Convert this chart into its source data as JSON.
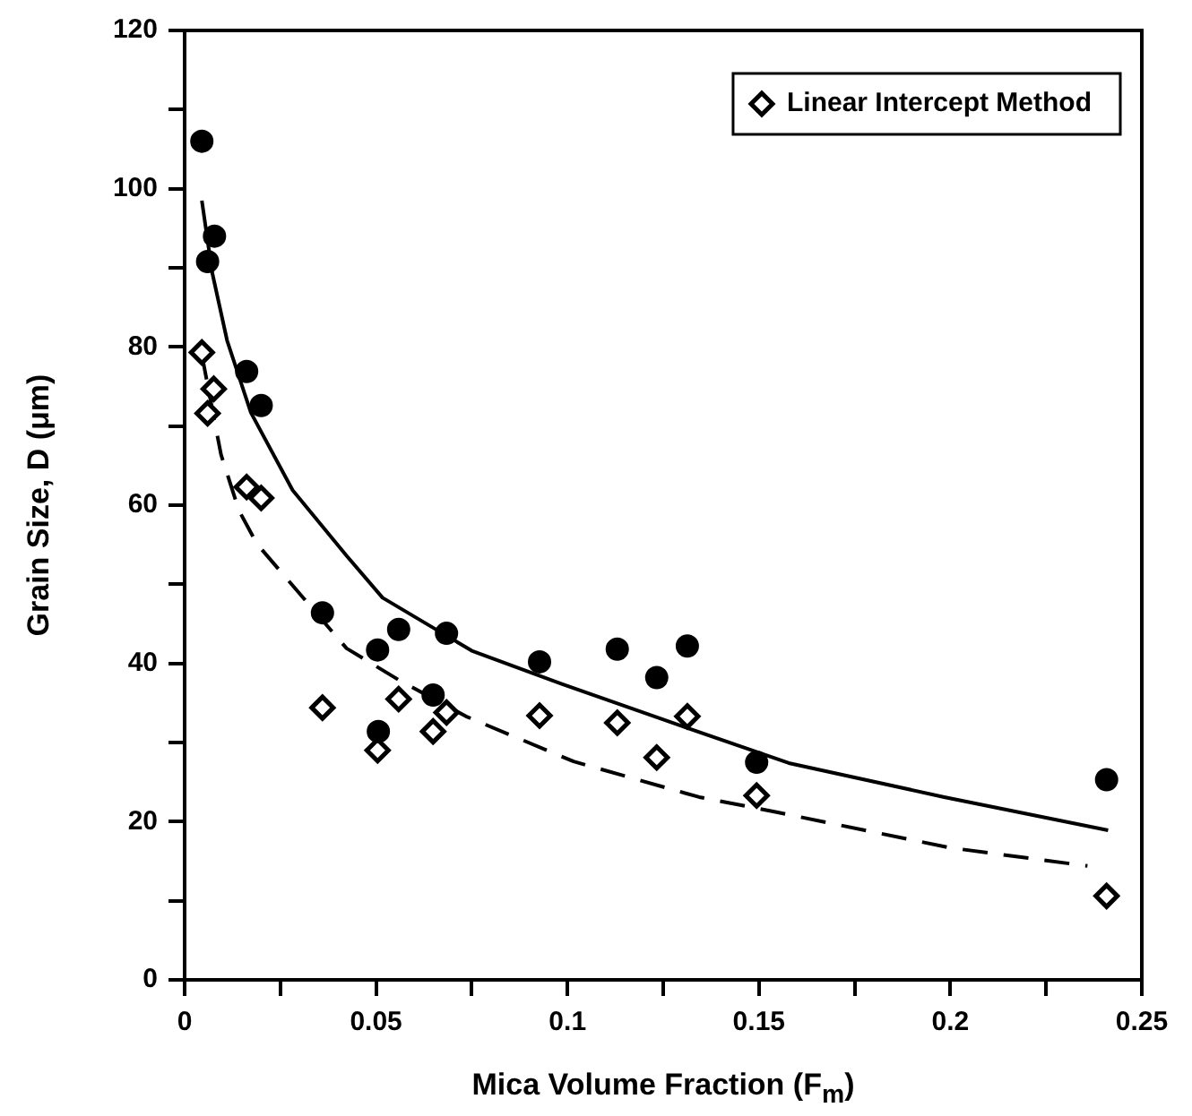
{
  "chart_data": {
    "type": "scatter",
    "xlabel": "Mica Volume Fraction (F$_{m}$)",
    "ylabel": "Grain Size, D (μm)",
    "xlim": [
      0,
      0.25
    ],
    "xticks": [
      0,
      {
        "value": 0.025,
        "label": null
      },
      0.05,
      {
        "value": 0.075,
        "label": null
      },
      0.1,
      {
        "value": 0.125,
        "label": null
      },
      0.15,
      {
        "value": 0.175,
        "label": null
      },
      0.2,
      {
        "value": 0.225,
        "label": null
      },
      0.25
    ],
    "ylim": [
      0,
      120
    ],
    "yticks": [
      0,
      {
        "value": 10,
        "label": null
      },
      20,
      {
        "value": 30,
        "label": null
      },
      40,
      {
        "value": 50,
        "label": null
      },
      60,
      {
        "value": 70,
        "label": null
      },
      80,
      {
        "value": 90,
        "label": null
      },
      100,
      {
        "value": 110,
        "label": null
      },
      120
    ],
    "grid": false,
    "legend": "top right",
    "series": [
      {
        "type": "scatter",
        "color": "#000000",
        "marker": "circle",
        "x": [
          0.0045,
          0.0078,
          0.006,
          0.0162,
          0.02,
          0.036,
          0.0504,
          0.0559,
          0.0684,
          0.0649,
          0.0506,
          0.0927,
          0.113,
          0.1233,
          0.1313,
          0.1494,
          0.2408
        ],
        "values": [
          106,
          94,
          90.8,
          76.9,
          72.6,
          46.4,
          41.7,
          44.3,
          43.8,
          36,
          31.4,
          40.2,
          41.8,
          38.2,
          42.2,
          27.5,
          25.3
        ]
      },
      {
        "type": "scatter",
        "name": "Linear Intercept Method",
        "color": "#000000",
        "marker": "diamond",
        "x": [
          0.0045,
          0.0076,
          0.006,
          0.0162,
          0.02,
          0.036,
          0.0559,
          0.0504,
          0.0684,
          0.0649,
          0.0927,
          0.113,
          0.1233,
          0.1313,
          0.1494,
          0.2408
        ],
        "values": [
          79.3,
          74.7,
          71.6,
          62.3,
          60.9,
          34.4,
          35.5,
          29,
          33.8,
          31.4,
          33.4,
          32.5,
          28.1,
          33.3,
          23.3,
          10.6
        ]
      },
      {
        "type": "line",
        "color": "#000000",
        "line_style": "solid",
        "x": [
          0.0045,
          0.0072,
          0.0111,
          0.0173,
          0.0282,
          0.0423,
          0.0517,
          0.075,
          0.0985,
          0.1297,
          0.1578,
          0.1984,
          0.2412
        ],
        "values": [
          98.5,
          89.4,
          80.8,
          71.7,
          61.9,
          53.6,
          48.3,
          41.6,
          37.4,
          32.1,
          27.4,
          23.1,
          18.9
        ]
      },
      {
        "type": "line",
        "color": "#000000",
        "line_style": "dashed",
        "x": [
          0.0045,
          0.0095,
          0.0142,
          0.0189,
          0.0423,
          0.0563,
          0.0735,
          0.1016,
          0.1344,
          0.1546,
          0.1999,
          0.2358
        ],
        "values": [
          79,
          66.4,
          59.3,
          55.1,
          41.9,
          37.8,
          33.3,
          27.6,
          23.1,
          21.2,
          16.7,
          14.4
        ]
      }
    ]
  }
}
